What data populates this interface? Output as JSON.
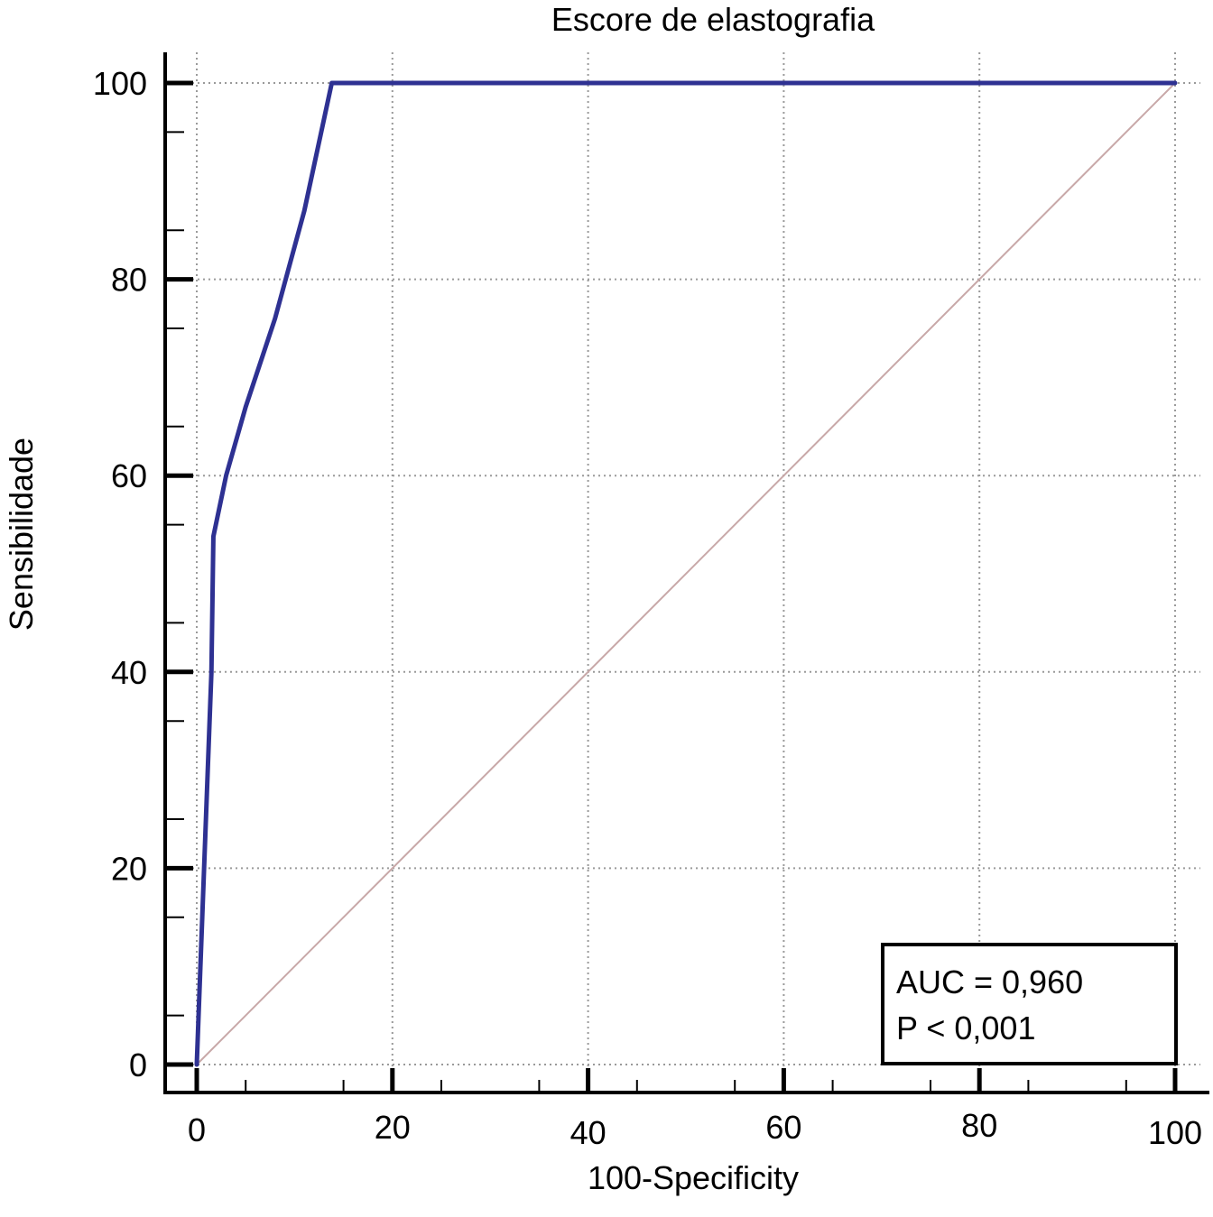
{
  "chart_data": {
    "type": "line",
    "title": "Escore de elastografia",
    "xlabel": "100-Specificity",
    "ylabel": "Sensibilidade",
    "xlim": [
      0,
      100
    ],
    "ylim": [
      0,
      100
    ],
    "x_ticks": [
      0,
      20,
      40,
      60,
      80,
      100
    ],
    "y_ticks": [
      0,
      20,
      40,
      60,
      80,
      100
    ],
    "grid": true,
    "series": [
      {
        "role": "roc-curve",
        "color": "#2e3192",
        "x": [
          0,
          1.5,
          1.7,
          3,
          5,
          8,
          11,
          13.8,
          100
        ],
        "y": [
          0,
          40,
          53.8,
          60,
          67,
          76,
          87,
          100,
          100
        ]
      },
      {
        "role": "reference-diagonal",
        "color": "#c8a8a8",
        "x": [
          0,
          100
        ],
        "y": [
          0,
          100
        ]
      }
    ],
    "annotations": [
      {
        "text": "AUC = 0,960"
      },
      {
        "text": "P < 0,001"
      }
    ]
  }
}
